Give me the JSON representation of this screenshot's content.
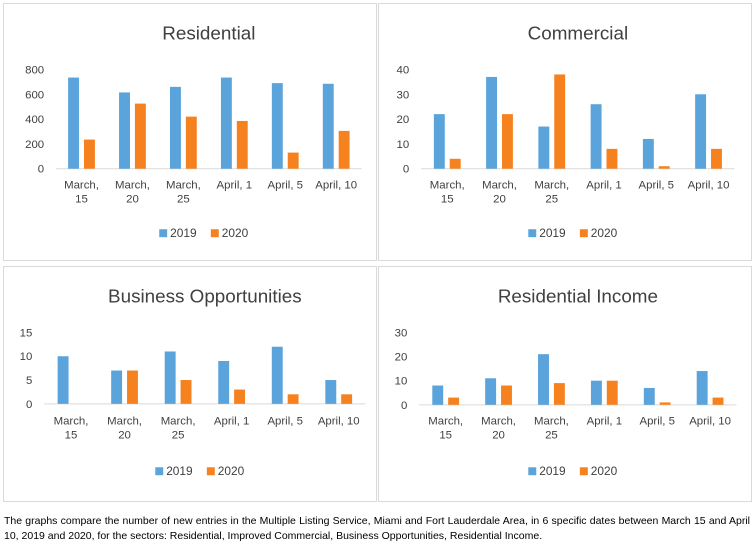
{
  "colors": {
    "series_2019": "#5BA3DB",
    "series_2020": "#F5821F",
    "grid": "#d9d9d9",
    "text": "#404040"
  },
  "caption": "The graphs compare the number of new entries in the Multiple Listing Service, Miami and Fort Lauderdale Area, in 6 specific dates between March 15 and April 10, 2019 and 2020, for the sectors: Residential, Improved Commercial, Business Opportunities, Residential Income.",
  "chart_data": [
    {
      "type": "bar",
      "title": "Residential",
      "categories": [
        [
          "March,",
          "15"
        ],
        [
          "March,",
          "20"
        ],
        [
          "March,",
          "25"
        ],
        [
          "April, 1"
        ],
        [
          "April, 5"
        ],
        [
          "April, 10"
        ]
      ],
      "series": [
        {
          "name": "2019",
          "values": [
            735,
            615,
            660,
            735,
            690,
            685
          ]
        },
        {
          "name": "2020",
          "values": [
            235,
            525,
            420,
            385,
            130,
            305
          ]
        }
      ],
      "ylim": [
        0,
        800
      ],
      "yticks": [
        0,
        200,
        400,
        600,
        800
      ],
      "legend": "bottom",
      "grid": false
    },
    {
      "type": "bar",
      "title": "Commercial",
      "categories": [
        [
          "March,",
          "15"
        ],
        [
          "March,",
          "20"
        ],
        [
          "March,",
          "25"
        ],
        [
          "April, 1"
        ],
        [
          "April, 5"
        ],
        [
          "April, 10"
        ]
      ],
      "series": [
        {
          "name": "2019",
          "values": [
            22,
            37,
            17,
            26,
            12,
            30
          ]
        },
        {
          "name": "2020",
          "values": [
            4,
            22,
            38,
            8,
            1,
            8
          ]
        }
      ],
      "ylim": [
        0,
        40
      ],
      "yticks": [
        0,
        10,
        20,
        30,
        40
      ],
      "legend": "bottom",
      "grid": false
    },
    {
      "type": "bar",
      "title": "Business Opportunities",
      "categories": [
        [
          "March,",
          "15"
        ],
        [
          "March,",
          "20"
        ],
        [
          "March,",
          "25"
        ],
        [
          "April, 1"
        ],
        [
          "April, 5"
        ],
        [
          "April, 10"
        ]
      ],
      "series": [
        {
          "name": "2019",
          "values": [
            10,
            7,
            11,
            9,
            12,
            5
          ]
        },
        {
          "name": "2020",
          "values": [
            0,
            7,
            5,
            3,
            2,
            2
          ]
        }
      ],
      "ylim": [
        0,
        15
      ],
      "yticks": [
        0,
        5,
        10,
        15
      ],
      "legend": "bottom",
      "grid": false
    },
    {
      "type": "bar",
      "title": "Residential Income",
      "categories": [
        [
          "March,",
          "15"
        ],
        [
          "March,",
          "20"
        ],
        [
          "March,",
          "25"
        ],
        [
          "April, 1"
        ],
        [
          "April, 5"
        ],
        [
          "April, 10"
        ]
      ],
      "series": [
        {
          "name": "2019",
          "values": [
            8,
            11,
            21,
            10,
            7,
            14
          ]
        },
        {
          "name": "2020",
          "values": [
            3,
            8,
            9,
            10,
            1,
            3
          ]
        }
      ],
      "ylim": [
        0,
        30
      ],
      "yticks": [
        0,
        10,
        20,
        30
      ],
      "legend": "bottom",
      "grid": false
    }
  ]
}
